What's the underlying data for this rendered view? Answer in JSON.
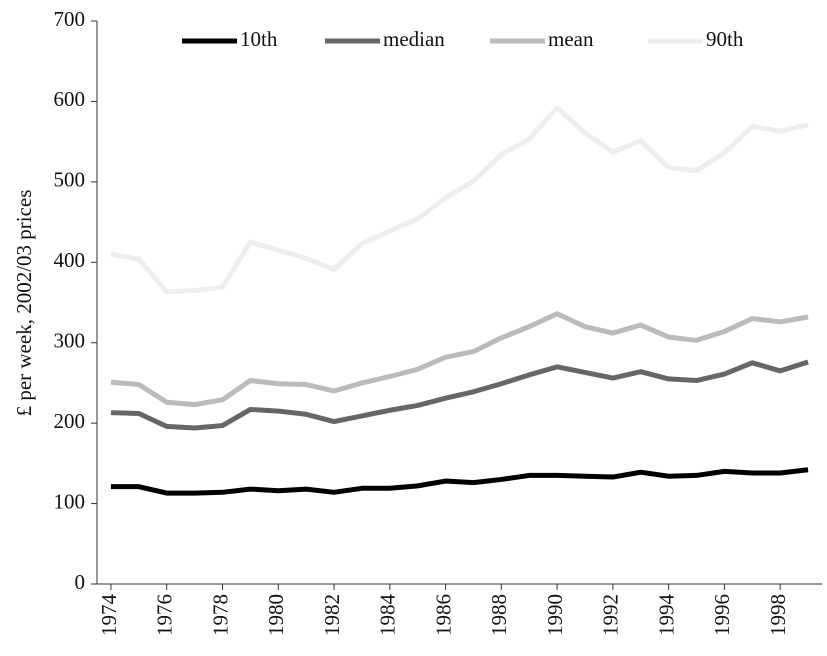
{
  "chart_data": {
    "type": "line",
    "y_label": "£ per week, 2002/03 prices",
    "x": [
      1974,
      1975,
      1976,
      1977,
      1978,
      1979,
      1980,
      1981,
      1982,
      1983,
      1984,
      1985,
      1986,
      1987,
      1988,
      1989,
      1990,
      1991,
      1992,
      1993,
      1994,
      1995,
      1996,
      1997,
      1998,
      1999
    ],
    "series": [
      {
        "name": "10th",
        "color": "#000000",
        "values": [
          121,
          121,
          113,
          113,
          114,
          118,
          116,
          118,
          114,
          119,
          119,
          122,
          128,
          126,
          130,
          135,
          135,
          134,
          133,
          139,
          134,
          135,
          140,
          138,
          138,
          142
        ]
      },
      {
        "name": "median",
        "color": "#666666",
        "values": [
          213,
          212,
          196,
          194,
          197,
          217,
          215,
          211,
          202,
          209,
          216,
          222,
          231,
          239,
          249,
          260,
          270,
          263,
          256,
          264,
          255,
          253,
          261,
          275,
          265,
          276
        ]
      },
      {
        "name": "mean",
        "color": "#bbbbbb",
        "values": [
          251,
          248,
          226,
          223,
          229,
          253,
          249,
          248,
          240,
          250,
          258,
          267,
          282,
          289,
          306,
          320,
          336,
          320,
          312,
          322,
          307,
          303,
          314,
          330,
          326,
          332
        ]
      },
      {
        "name": "90th",
        "color": "#eeeeee",
        "values": [
          410,
          404,
          363,
          365,
          369,
          425,
          415,
          405,
          391,
          423,
          439,
          454,
          480,
          501,
          534,
          553,
          592,
          561,
          537,
          551,
          518,
          514,
          536,
          569,
          563,
          571
        ]
      }
    ],
    "xlim": [
      1973.5,
      1999.5
    ],
    "xticks": [
      1974,
      1976,
      1978,
      1980,
      1982,
      1984,
      1986,
      1988,
      1990,
      1992,
      1994,
      1996,
      1998
    ],
    "ylim": [
      0,
      700
    ],
    "yticks": [
      0,
      100,
      200,
      300,
      400,
      500,
      600,
      700
    ],
    "legend": "top"
  }
}
